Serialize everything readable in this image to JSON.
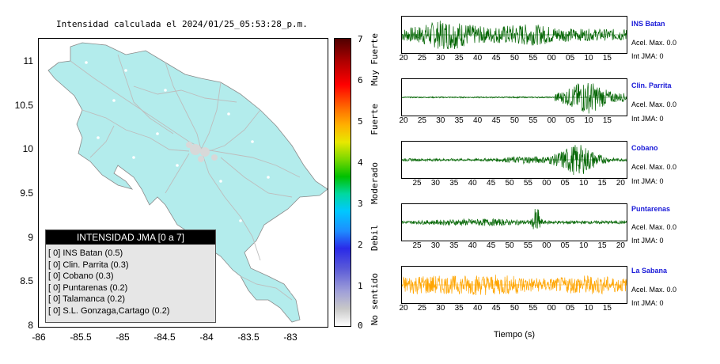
{
  "map": {
    "title": "Intensidad calculada el 2024/01/25_05:53:28_p.m.",
    "y_ticks": [
      "11",
      "10.5",
      "10",
      "9.5",
      "9",
      "8.5",
      "8"
    ],
    "x_ticks": [
      "-86",
      "-85.5",
      "-85",
      "-84.5",
      "-84",
      "-83.5",
      "-83"
    ],
    "land_color": "#b3ecec",
    "road_color": "#bdbdbd"
  },
  "legend": {
    "header": "INTENSIDAD JMA [0 a 7]",
    "items": [
      "[ 0] INS Batan (0.5)",
      "[ 0] Clin. Parrita (0.3)",
      "[ 0] Cobano (0.3)",
      "[ 0] Puntarenas (0.2)",
      "[ 0] Talamanca (0.2)",
      "[ 0] S.L. Gonzaga,Cartago (0.2)"
    ]
  },
  "colorbar": {
    "ticks": [
      "7",
      "6",
      "5",
      "4",
      "3",
      "2",
      "1",
      "0"
    ],
    "labels": [
      "Muy Fuerte",
      "Fuerte",
      "Moderado",
      "Debil",
      "No sentido"
    ]
  },
  "stations": [
    {
      "name": "INS Batan",
      "acel": "Acel. Max. 0.0",
      "int": "Int JMA: 0",
      "color": "#006400",
      "ticks": [
        "20",
        "25",
        "30",
        "35",
        "40",
        "45",
        "50",
        "55",
        "00",
        "05",
        "10",
        "15"
      ]
    },
    {
      "name": "Clin. Parrita",
      "acel": "Acel. Max. 0.0",
      "int": "Int JMA: 0",
      "color": "#006400",
      "ticks": [
        "20",
        "25",
        "30",
        "35",
        "40",
        "45",
        "50",
        "55",
        "00",
        "05",
        "10",
        "15"
      ]
    },
    {
      "name": "Cobano",
      "acel": "Acel. Max. 0.0",
      "int": "Int JMA: 0",
      "color": "#006400",
      "ticks": [
        "25",
        "30",
        "35",
        "40",
        "45",
        "50",
        "55",
        "00",
        "05",
        "10",
        "15",
        "20"
      ]
    },
    {
      "name": "Puntarenas",
      "acel": "Acel. Max. 0.0",
      "int": "Int JMA: 0",
      "color": "#006400",
      "ticks": [
        "25",
        "30",
        "35",
        "40",
        "45",
        "50",
        "55",
        "00",
        "05",
        "10",
        "15",
        "20"
      ]
    },
    {
      "name": "La Sabana",
      "acel": "Acel. Max. 0.0",
      "int": "Int JMA: 0",
      "color": "#ffa500",
      "ticks": [
        "20",
        "25",
        "30",
        "35",
        "40",
        "45",
        "50",
        "55",
        "00",
        "05",
        "10",
        "15"
      ]
    }
  ],
  "xaxis_title": "Tiempo (s)"
}
